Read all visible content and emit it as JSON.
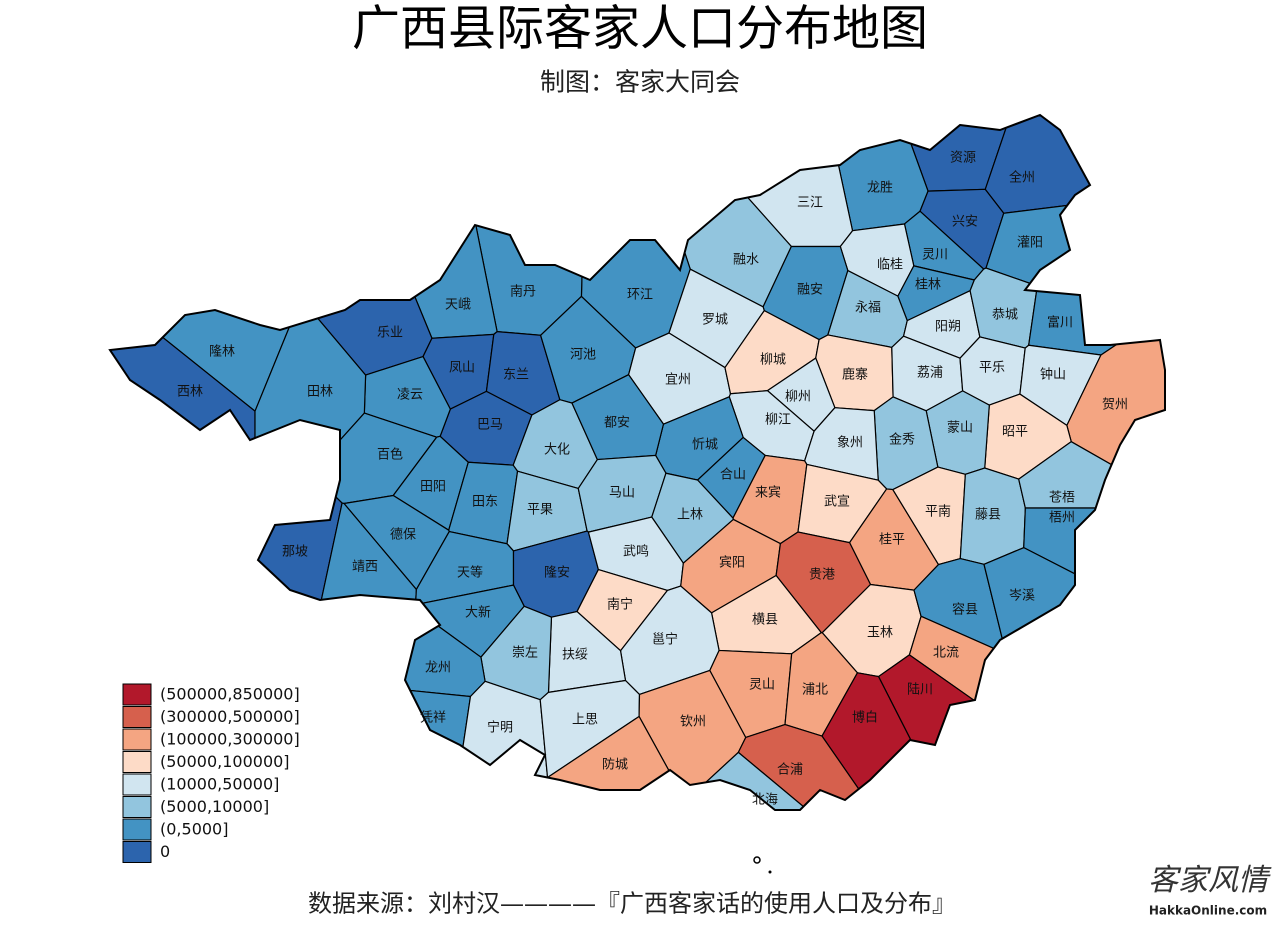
{
  "title": "广西县际客家人口分布地图",
  "subtitle": "制图：客家大同会",
  "legend": [
    {
      "label": "(500000,850000]",
      "color": "#b2182b"
    },
    {
      "label": "(300000,500000]",
      "color": "#d6604d"
    },
    {
      "label": "(100000,300000]",
      "color": "#f4a582"
    },
    {
      "label": "(50000,100000]",
      "color": "#fddbc7"
    },
    {
      "label": "(10000,50000]",
      "color": "#d1e5f0"
    },
    {
      "label": "(5000,10000]",
      "color": "#92c5de"
    },
    {
      "label": "(0,5000]",
      "color": "#4393c3"
    },
    {
      "label": "0",
      "color": "#2c64ad"
    }
  ],
  "counties": [
    {
      "name": "资源",
      "color": "#2c64ad"
    },
    {
      "name": "全州",
      "color": "#2c64ad"
    },
    {
      "name": "龙胜",
      "color": "#4393c3"
    },
    {
      "name": "三江",
      "color": "#d1e5f0"
    },
    {
      "name": "兴安",
      "color": "#2c64ad"
    },
    {
      "name": "灌阳",
      "color": "#4393c3"
    },
    {
      "name": "灵川",
      "color": "#4393c3"
    },
    {
      "name": "临桂",
      "color": "#d1e5f0"
    },
    {
      "name": "桂林",
      "color": "#4393c3"
    },
    {
      "name": "融水",
      "color": "#92c5de"
    },
    {
      "name": "融安",
      "color": "#4393c3"
    },
    {
      "name": "永福",
      "color": "#92c5de"
    },
    {
      "name": "环江",
      "color": "#4393c3"
    },
    {
      "name": "南丹",
      "color": "#4393c3"
    },
    {
      "name": "天峨",
      "color": "#4393c3"
    },
    {
      "name": "乐业",
      "color": "#2c64ad"
    },
    {
      "name": "凤山",
      "color": "#2c64ad"
    },
    {
      "name": "东兰",
      "color": "#2c64ad"
    },
    {
      "name": "巴马",
      "color": "#2c64ad"
    },
    {
      "name": "凌云",
      "color": "#4393c3"
    },
    {
      "name": "隆林",
      "color": "#4393c3"
    },
    {
      "name": "西林",
      "color": "#2c64ad"
    },
    {
      "name": "田林",
      "color": "#4393c3"
    },
    {
      "name": "河池",
      "color": "#4393c3"
    },
    {
      "name": "罗城",
      "color": "#d1e5f0"
    },
    {
      "name": "宜州",
      "color": "#d1e5f0"
    },
    {
      "name": "柳城",
      "color": "#fddbc7"
    },
    {
      "name": "鹿寨",
      "color": "#fddbc7"
    },
    {
      "name": "柳州",
      "color": "#d1e5f0"
    },
    {
      "name": "柳江",
      "color": "#d1e5f0"
    },
    {
      "name": "阳朔",
      "color": "#d1e5f0"
    },
    {
      "name": "恭城",
      "color": "#92c5de"
    },
    {
      "name": "富川",
      "color": "#4393c3"
    },
    {
      "name": "荔浦",
      "color": "#d1e5f0"
    },
    {
      "name": "平乐",
      "color": "#d1e5f0"
    },
    {
      "name": "钟山",
      "color": "#d1e5f0"
    },
    {
      "name": "贺州",
      "color": "#f4a582"
    },
    {
      "name": "昭平",
      "color": "#fddbc7"
    },
    {
      "name": "蒙山",
      "color": "#92c5de"
    },
    {
      "name": "金秀",
      "color": "#92c5de"
    },
    {
      "name": "象州",
      "color": "#d1e5f0"
    },
    {
      "name": "忻城",
      "color": "#4393c3"
    },
    {
      "name": "大化",
      "color": "#92c5de"
    },
    {
      "name": "都安",
      "color": "#4393c3"
    },
    {
      "name": "百色",
      "color": "#4393c3"
    },
    {
      "name": "田阳",
      "color": "#4393c3"
    },
    {
      "name": "田东",
      "color": "#4393c3"
    },
    {
      "name": "平果",
      "color": "#92c5de"
    },
    {
      "name": "马山",
      "color": "#92c5de"
    },
    {
      "name": "合山",
      "color": "#4393c3"
    },
    {
      "name": "来宾",
      "color": "#f4a582"
    },
    {
      "name": "武宣",
      "color": "#fddbc7"
    },
    {
      "name": "上林",
      "color": "#92c5de"
    },
    {
      "name": "桂平",
      "color": "#f4a582"
    },
    {
      "name": "平南",
      "color": "#fddbc7"
    },
    {
      "name": "藤县",
      "color": "#92c5de"
    },
    {
      "name": "苍梧",
      "color": "#92c5de"
    },
    {
      "name": "梧州",
      "color": "#4393c3"
    },
    {
      "name": "那坡",
      "color": "#2c64ad"
    },
    {
      "name": "德保",
      "color": "#4393c3"
    },
    {
      "name": "靖西",
      "color": "#4393c3"
    },
    {
      "name": "天等",
      "color": "#4393c3"
    },
    {
      "name": "隆安",
      "color": "#2c64ad"
    },
    {
      "name": "武鸣",
      "color": "#d1e5f0"
    },
    {
      "name": "宾阳",
      "color": "#f4a582"
    },
    {
      "name": "贵港",
      "color": "#d6604d"
    },
    {
      "name": "大新",
      "color": "#4393c3"
    },
    {
      "name": "南宁",
      "color": "#fddbc7"
    },
    {
      "name": "横县",
      "color": "#fddbc7"
    },
    {
      "name": "玉林",
      "color": "#fddbc7"
    },
    {
      "name": "容县",
      "color": "#4393c3"
    },
    {
      "name": "岑溪",
      "color": "#4393c3"
    },
    {
      "name": "邕宁",
      "color": "#d1e5f0"
    },
    {
      "name": "扶绥",
      "color": "#d1e5f0"
    },
    {
      "name": "崇左",
      "color": "#92c5de"
    },
    {
      "name": "龙州",
      "color": "#4393c3"
    },
    {
      "name": "北流",
      "color": "#f4a582"
    },
    {
      "name": "陆川",
      "color": "#b2182b"
    },
    {
      "name": "灵山",
      "color": "#f4a582"
    },
    {
      "name": "浦北",
      "color": "#f4a582"
    },
    {
      "name": "博白",
      "color": "#b2182b"
    },
    {
      "name": "凭祥",
      "color": "#4393c3"
    },
    {
      "name": "宁明",
      "color": "#d1e5f0"
    },
    {
      "name": "上思",
      "color": "#d1e5f0"
    },
    {
      "name": "钦州",
      "color": "#f4a582"
    },
    {
      "name": "防城",
      "color": "#f4a582"
    },
    {
      "name": "合浦",
      "color": "#d6604d"
    },
    {
      "name": "北海",
      "color": "#92c5de"
    }
  ],
  "source": "数据来源：刘村汉————『广西客家话的使用人口及分布』",
  "watermark": {
    "logo": "客家风情",
    "site": "HakkaOnline.com"
  }
}
